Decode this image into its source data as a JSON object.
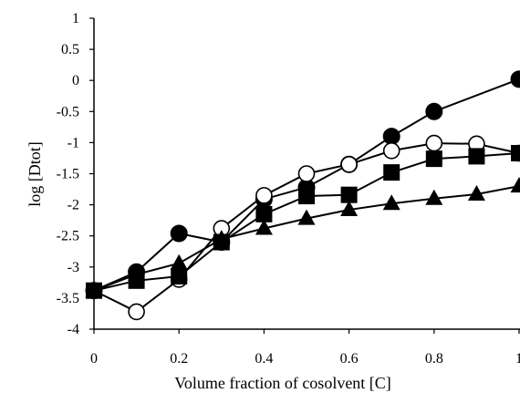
{
  "chart_data": {
    "type": "line",
    "title": "",
    "xlabel": "Volume fraction of cosolvent [C]",
    "ylabel": "log [Dtot]",
    "xlim": [
      0,
      1
    ],
    "ylim": [
      -4,
      1
    ],
    "x_ticks": [
      0,
      0.2,
      0.4,
      0.6,
      0.8,
      1
    ],
    "x_tick_labels": [
      "0",
      "0.2",
      "0.4",
      "0.6",
      "0.8",
      "1"
    ],
    "y_ticks": [
      1,
      0.5,
      0,
      -0.5,
      -1,
      -1.5,
      -2,
      -2.5,
      -3,
      -3.5,
      -4
    ],
    "y_tick_labels": [
      "1",
      "0.5",
      "0",
      "-0.5",
      "-1",
      "-1.5",
      "-2",
      "-2.5",
      "-3",
      "-3.5",
      "-4"
    ],
    "grid": false,
    "legend": "none",
    "x": [
      0,
      0.1,
      0.2,
      0.3,
      0.4,
      0.5,
      0.6,
      0.7,
      0.8,
      0.9,
      1.0
    ],
    "series": [
      {
        "marker": "filled-circle",
        "values": [
          -3.38,
          -3.08,
          -2.46,
          -2.6,
          -1.91,
          -1.72,
          -1.35,
          -0.9,
          -0.5,
          null,
          0.02
        ]
      },
      {
        "marker": "open-circle",
        "values": [
          -3.38,
          -3.72,
          -3.2,
          -2.38,
          -1.85,
          -1.5,
          -1.35,
          -1.13,
          -1.01,
          -1.02,
          -1.17
        ]
      },
      {
        "marker": "filled-square",
        "values": [
          -3.38,
          -3.22,
          -3.15,
          -2.6,
          -2.15,
          -1.86,
          -1.84,
          -1.48,
          -1.26,
          -1.22,
          -1.17
        ]
      },
      {
        "marker": "filled-triangle",
        "values": [
          -3.38,
          -3.12,
          -2.94,
          -2.55,
          -2.38,
          -2.22,
          -2.08,
          -1.98,
          -1.9,
          -1.83,
          -1.7
        ]
      }
    ],
    "colors": {
      "line": "#000000",
      "fill": "#000000",
      "open_fill": "#ffffff"
    }
  }
}
